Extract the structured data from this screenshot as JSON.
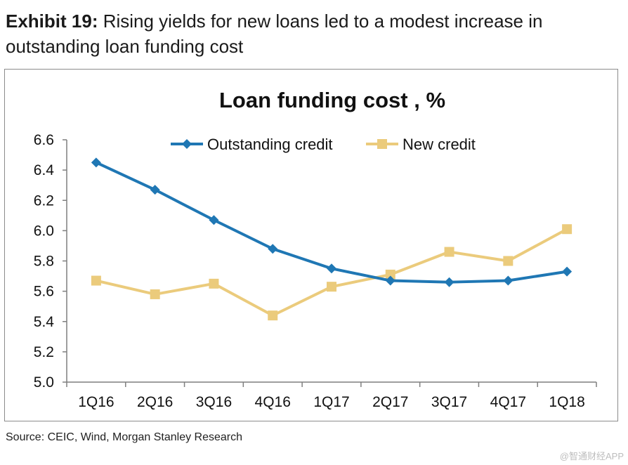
{
  "exhibit": {
    "label": "Exhibit 19:",
    "text": " Rising yields for new loans led to a modest increase in outstanding loan funding cost"
  },
  "source": "Source: CEIC, Wind, Morgan Stanley Research",
  "watermark": "@智通财经APP",
  "chart_data": {
    "type": "line",
    "title": "Loan funding cost , %",
    "xlabel": "",
    "ylabel": "",
    "categories": [
      "1Q16",
      "2Q16",
      "3Q16",
      "4Q16",
      "1Q17",
      "2Q17",
      "3Q17",
      "4Q17",
      "1Q18"
    ],
    "ylim": [
      5.0,
      6.6
    ],
    "yticks": [
      "5.0",
      "5.2",
      "5.4",
      "5.6",
      "5.8",
      "6.0",
      "6.2",
      "6.4",
      "6.6"
    ],
    "grid": false,
    "legend": "top",
    "series": [
      {
        "name": "Outstanding credit",
        "color": "#1f77b4",
        "marker": "diamond",
        "values": [
          6.45,
          6.27,
          6.07,
          5.88,
          5.75,
          5.67,
          5.66,
          5.67,
          5.73
        ]
      },
      {
        "name": "New credit",
        "color": "#ebcb7c",
        "marker": "square",
        "values": [
          5.67,
          5.58,
          5.65,
          5.44,
          5.63,
          5.71,
          5.86,
          5.8,
          6.01
        ]
      }
    ]
  }
}
